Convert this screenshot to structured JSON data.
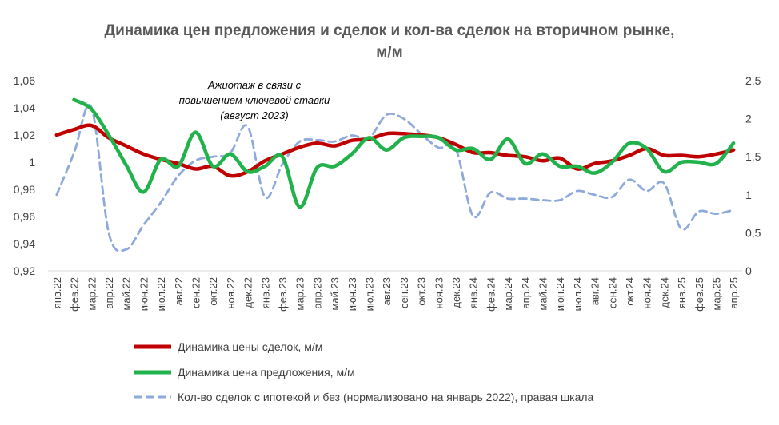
{
  "chart_data": {
    "type": "line",
    "title_line1": "Динамика цен предложения и сделок и кол-ва сделок на вторичном рынке,",
    "title_line2": "м/м",
    "annotation": [
      "Ажиотаж в связи с",
      "повышением ключевой ставки",
      "(август 2023)"
    ],
    "categories": [
      "янв.22",
      "фев.22",
      "мар.22",
      "апр.22",
      "май.22",
      "июн.22",
      "июл.22",
      "авг.22",
      "сен.22",
      "окт.22",
      "ноя.22",
      "дек.22",
      "янв.23",
      "фев.23",
      "мар.23",
      "апр.23",
      "май.23",
      "июн.23",
      "июл.23",
      "авг.23",
      "сен.23",
      "окт.23",
      "ноя.23",
      "дек.23",
      "янв.24",
      "фев.24",
      "мар.24",
      "апр.24",
      "май.24",
      "июн.24",
      "июл.24",
      "авг.24",
      "сен.24",
      "окт.24",
      "ноя.24",
      "дек.24",
      "янв.25",
      "фев.25",
      "мар.25",
      "апр.25"
    ],
    "y_left": {
      "min": 0.92,
      "max": 1.06,
      "ticks": [
        "0,92",
        "0,94",
        "0,96",
        "0,98",
        "1",
        "1,02",
        "1,04",
        "1,06"
      ]
    },
    "y_right": {
      "min": 0,
      "max": 2.5,
      "ticks": [
        "0",
        "0,5",
        "1",
        "1,5",
        "2",
        "2,5"
      ]
    },
    "series": [
      {
        "name": "Динамика цены сделок, м/м",
        "axis": "left",
        "color": "#c00000",
        "style": "solid",
        "values": [
          1.02,
          1.024,
          1.027,
          1.018,
          1.012,
          1.006,
          1.002,
          0.999,
          0.995,
          0.997,
          0.99,
          0.993,
          1.001,
          1.006,
          1.011,
          1.014,
          1.012,
          1.016,
          1.017,
          1.021,
          1.021,
          1.02,
          1.018,
          1.013,
          1.007,
          1.007,
          1.005,
          1.004,
          1.001,
          1.003,
          0.995,
          0.999,
          1.001,
          1.005,
          1.01,
          1.005,
          1.005,
          1.004,
          1.006,
          1.009
        ]
      },
      {
        "name": "Динамика цена предложения, м/м",
        "axis": "left",
        "color": "#21b24b",
        "style": "solid",
        "values": [
          null,
          1.046,
          1.039,
          1.02,
          0.998,
          0.978,
          1.002,
          0.997,
          1.022,
          0.997,
          1.006,
          0.993,
          0.997,
          1.004,
          0.967,
          0.996,
          0.997,
          1.006,
          1.018,
          1.009,
          1.018,
          1.019,
          1.018,
          1.009,
          1.01,
          1.002,
          1.017,
          0.999,
          1.006,
          0.997,
          0.997,
          0.992,
          1.0,
          1.014,
          1.01,
          0.993,
          1.0,
          1.0,
          0.999,
          1.014
        ]
      },
      {
        "name": "Кол-во сделок с ипотекой и без (нормализовано на январь 2022),  правая шкала",
        "axis": "right",
        "color": "#8ea9db",
        "style": "dashed",
        "values": [
          1.0,
          1.55,
          2.15,
          0.5,
          0.28,
          0.6,
          0.9,
          1.25,
          1.45,
          1.5,
          1.55,
          1.9,
          0.97,
          1.4,
          1.7,
          1.72,
          1.7,
          1.78,
          1.75,
          2.05,
          2.0,
          1.8,
          1.62,
          1.6,
          0.72,
          1.03,
          0.95,
          0.95,
          0.93,
          0.93,
          1.05,
          1.0,
          0.97,
          1.2,
          1.05,
          1.15,
          0.55,
          0.78,
          0.75,
          0.8
        ]
      }
    ]
  }
}
